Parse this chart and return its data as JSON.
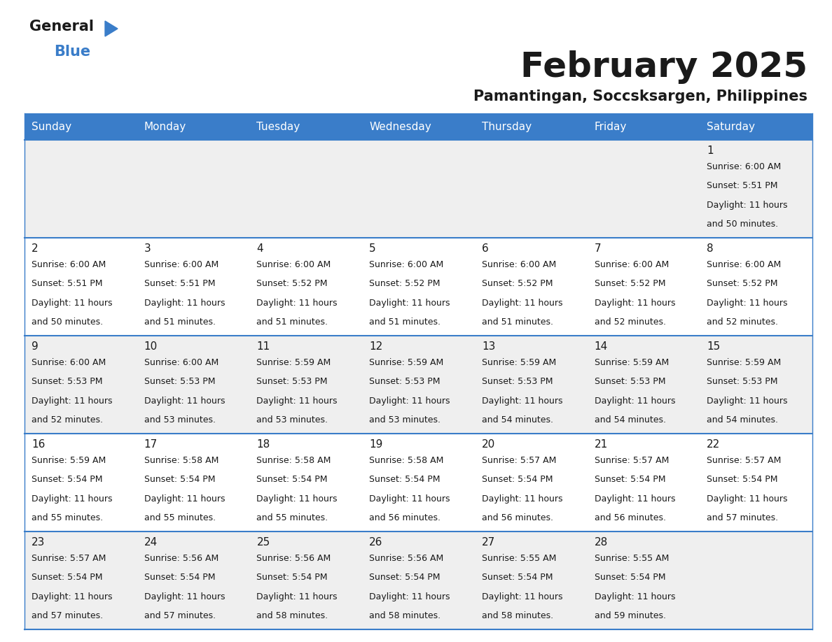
{
  "title": "February 2025",
  "subtitle": "Pamantingan, Soccsksargen, Philippines",
  "header_bg": "#3A7DC9",
  "header_text": "#FFFFFF",
  "row_bg_odd": "#EFEFEF",
  "row_bg_even": "#FFFFFF",
  "cell_border_color": "#3A7DC9",
  "text_color": "#1a1a1a",
  "day_headers": [
    "Sunday",
    "Monday",
    "Tuesday",
    "Wednesday",
    "Thursday",
    "Friday",
    "Saturday"
  ],
  "days": [
    {
      "day": 1,
      "col": 6,
      "row": 0,
      "sunrise": "6:00 AM",
      "sunset": "5:51 PM",
      "daylight": "11 hours",
      "daylight2": "and 50 minutes."
    },
    {
      "day": 2,
      "col": 0,
      "row": 1,
      "sunrise": "6:00 AM",
      "sunset": "5:51 PM",
      "daylight": "11 hours",
      "daylight2": "and 50 minutes."
    },
    {
      "day": 3,
      "col": 1,
      "row": 1,
      "sunrise": "6:00 AM",
      "sunset": "5:51 PM",
      "daylight": "11 hours",
      "daylight2": "and 51 minutes."
    },
    {
      "day": 4,
      "col": 2,
      "row": 1,
      "sunrise": "6:00 AM",
      "sunset": "5:52 PM",
      "daylight": "11 hours",
      "daylight2": "and 51 minutes."
    },
    {
      "day": 5,
      "col": 3,
      "row": 1,
      "sunrise": "6:00 AM",
      "sunset": "5:52 PM",
      "daylight": "11 hours",
      "daylight2": "and 51 minutes."
    },
    {
      "day": 6,
      "col": 4,
      "row": 1,
      "sunrise": "6:00 AM",
      "sunset": "5:52 PM",
      "daylight": "11 hours",
      "daylight2": "and 51 minutes."
    },
    {
      "day": 7,
      "col": 5,
      "row": 1,
      "sunrise": "6:00 AM",
      "sunset": "5:52 PM",
      "daylight": "11 hours",
      "daylight2": "and 52 minutes."
    },
    {
      "day": 8,
      "col": 6,
      "row": 1,
      "sunrise": "6:00 AM",
      "sunset": "5:52 PM",
      "daylight": "11 hours",
      "daylight2": "and 52 minutes."
    },
    {
      "day": 9,
      "col": 0,
      "row": 2,
      "sunrise": "6:00 AM",
      "sunset": "5:53 PM",
      "daylight": "11 hours",
      "daylight2": "and 52 minutes."
    },
    {
      "day": 10,
      "col": 1,
      "row": 2,
      "sunrise": "6:00 AM",
      "sunset": "5:53 PM",
      "daylight": "11 hours",
      "daylight2": "and 53 minutes."
    },
    {
      "day": 11,
      "col": 2,
      "row": 2,
      "sunrise": "5:59 AM",
      "sunset": "5:53 PM",
      "daylight": "11 hours",
      "daylight2": "and 53 minutes."
    },
    {
      "day": 12,
      "col": 3,
      "row": 2,
      "sunrise": "5:59 AM",
      "sunset": "5:53 PM",
      "daylight": "11 hours",
      "daylight2": "and 53 minutes."
    },
    {
      "day": 13,
      "col": 4,
      "row": 2,
      "sunrise": "5:59 AM",
      "sunset": "5:53 PM",
      "daylight": "11 hours",
      "daylight2": "and 54 minutes."
    },
    {
      "day": 14,
      "col": 5,
      "row": 2,
      "sunrise": "5:59 AM",
      "sunset": "5:53 PM",
      "daylight": "11 hours",
      "daylight2": "and 54 minutes."
    },
    {
      "day": 15,
      "col": 6,
      "row": 2,
      "sunrise": "5:59 AM",
      "sunset": "5:53 PM",
      "daylight": "11 hours",
      "daylight2": "and 54 minutes."
    },
    {
      "day": 16,
      "col": 0,
      "row": 3,
      "sunrise": "5:59 AM",
      "sunset": "5:54 PM",
      "daylight": "11 hours",
      "daylight2": "and 55 minutes."
    },
    {
      "day": 17,
      "col": 1,
      "row": 3,
      "sunrise": "5:58 AM",
      "sunset": "5:54 PM",
      "daylight": "11 hours",
      "daylight2": "and 55 minutes."
    },
    {
      "day": 18,
      "col": 2,
      "row": 3,
      "sunrise": "5:58 AM",
      "sunset": "5:54 PM",
      "daylight": "11 hours",
      "daylight2": "and 55 minutes."
    },
    {
      "day": 19,
      "col": 3,
      "row": 3,
      "sunrise": "5:58 AM",
      "sunset": "5:54 PM",
      "daylight": "11 hours",
      "daylight2": "and 56 minutes."
    },
    {
      "day": 20,
      "col": 4,
      "row": 3,
      "sunrise": "5:57 AM",
      "sunset": "5:54 PM",
      "daylight": "11 hours",
      "daylight2": "and 56 minutes."
    },
    {
      "day": 21,
      "col": 5,
      "row": 3,
      "sunrise": "5:57 AM",
      "sunset": "5:54 PM",
      "daylight": "11 hours",
      "daylight2": "and 56 minutes."
    },
    {
      "day": 22,
      "col": 6,
      "row": 3,
      "sunrise": "5:57 AM",
      "sunset": "5:54 PM",
      "daylight": "11 hours",
      "daylight2": "and 57 minutes."
    },
    {
      "day": 23,
      "col": 0,
      "row": 4,
      "sunrise": "5:57 AM",
      "sunset": "5:54 PM",
      "daylight": "11 hours",
      "daylight2": "and 57 minutes."
    },
    {
      "day": 24,
      "col": 1,
      "row": 4,
      "sunrise": "5:56 AM",
      "sunset": "5:54 PM",
      "daylight": "11 hours",
      "daylight2": "and 57 minutes."
    },
    {
      "day": 25,
      "col": 2,
      "row": 4,
      "sunrise": "5:56 AM",
      "sunset": "5:54 PM",
      "daylight": "11 hours",
      "daylight2": "and 58 minutes."
    },
    {
      "day": 26,
      "col": 3,
      "row": 4,
      "sunrise": "5:56 AM",
      "sunset": "5:54 PM",
      "daylight": "11 hours",
      "daylight2": "and 58 minutes."
    },
    {
      "day": 27,
      "col": 4,
      "row": 4,
      "sunrise": "5:55 AM",
      "sunset": "5:54 PM",
      "daylight": "11 hours",
      "daylight2": "and 58 minutes."
    },
    {
      "day": 28,
      "col": 5,
      "row": 4,
      "sunrise": "5:55 AM",
      "sunset": "5:54 PM",
      "daylight": "11 hours",
      "daylight2": "and 59 minutes."
    }
  ],
  "num_rows": 5,
  "logo_general_color": "#1a1a1a",
  "logo_blue_color": "#3A7DC9",
  "logo_triangle_color": "#3A7DC9",
  "figsize": [
    11.88,
    9.18
  ],
  "dpi": 100
}
